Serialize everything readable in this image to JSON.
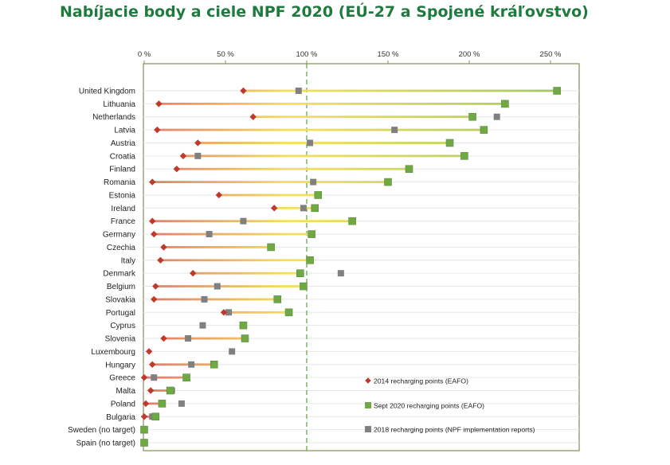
{
  "chart_data": {
    "type": "dot-range",
    "title": "Nabíjacie body a ciele NPF 2020 (EÚ-27 a Spojené kráľovstvo)",
    "x_ticks": [
      "0 %",
      "50 %",
      "100 %",
      "150 %",
      "200 %",
      "250 %"
    ],
    "x_tick_values": [
      0,
      50,
      100,
      150,
      200,
      250
    ],
    "xlim": [
      0,
      268
    ],
    "reference_line": 100,
    "categories": [
      "United Kingdom",
      "Lithuania",
      "Netherlands",
      "Latvia",
      "Austria",
      "Croatia",
      "Finland",
      "Romania",
      "Estonia",
      "Ireland",
      "France",
      "Germany",
      "Czechia",
      "Italy",
      "Denmark",
      "Belgium",
      "Slovakia",
      "Portugal",
      "Cyprus",
      "Slovenia",
      "Luxembourg",
      "Hungary",
      "Greece",
      "Malta",
      "Poland",
      "Bulgaria",
      "Sweden (no target)",
      "Spain (no target)"
    ],
    "series": [
      {
        "name": "2014 recharging points (EAFO)",
        "marker": "diamond",
        "color": "#c0392b",
        "values": [
          61,
          9,
          67,
          8,
          33,
          24,
          20,
          5,
          46,
          80,
          5,
          6,
          12,
          10,
          30,
          7,
          6,
          49,
          null,
          12,
          3,
          5,
          0,
          4,
          1,
          0,
          null,
          null
        ]
      },
      {
        "name": "Sept 2020 recharging points (EAFO)",
        "marker": "square",
        "color": "#70a846",
        "values": [
          254,
          222,
          202,
          209,
          188,
          197,
          163,
          150,
          107,
          105,
          128,
          103,
          78,
          102,
          96,
          98,
          82,
          89,
          61,
          62,
          null,
          43,
          26,
          16,
          11,
          7,
          0,
          0
        ]
      },
      {
        "name": "2018 recharging points (NPF implementation reports)",
        "marker": "square",
        "color": "#808080",
        "values": [
          95,
          null,
          217,
          154,
          102,
          33,
          null,
          104,
          null,
          98,
          61,
          40,
          null,
          null,
          121,
          45,
          37,
          52,
          36,
          27,
          54,
          29,
          6,
          17,
          23,
          5,
          null,
          null
        ]
      }
    ],
    "legend_position": "bottom-right"
  },
  "colors": {
    "title": "#1f7a3e",
    "frame": "#7f8f5a",
    "grid": "#e6e6e6",
    "reference": "#6aa84f",
    "low": "#e07a70",
    "mid": "#f5e05a",
    "high": "#a5c76a"
  }
}
